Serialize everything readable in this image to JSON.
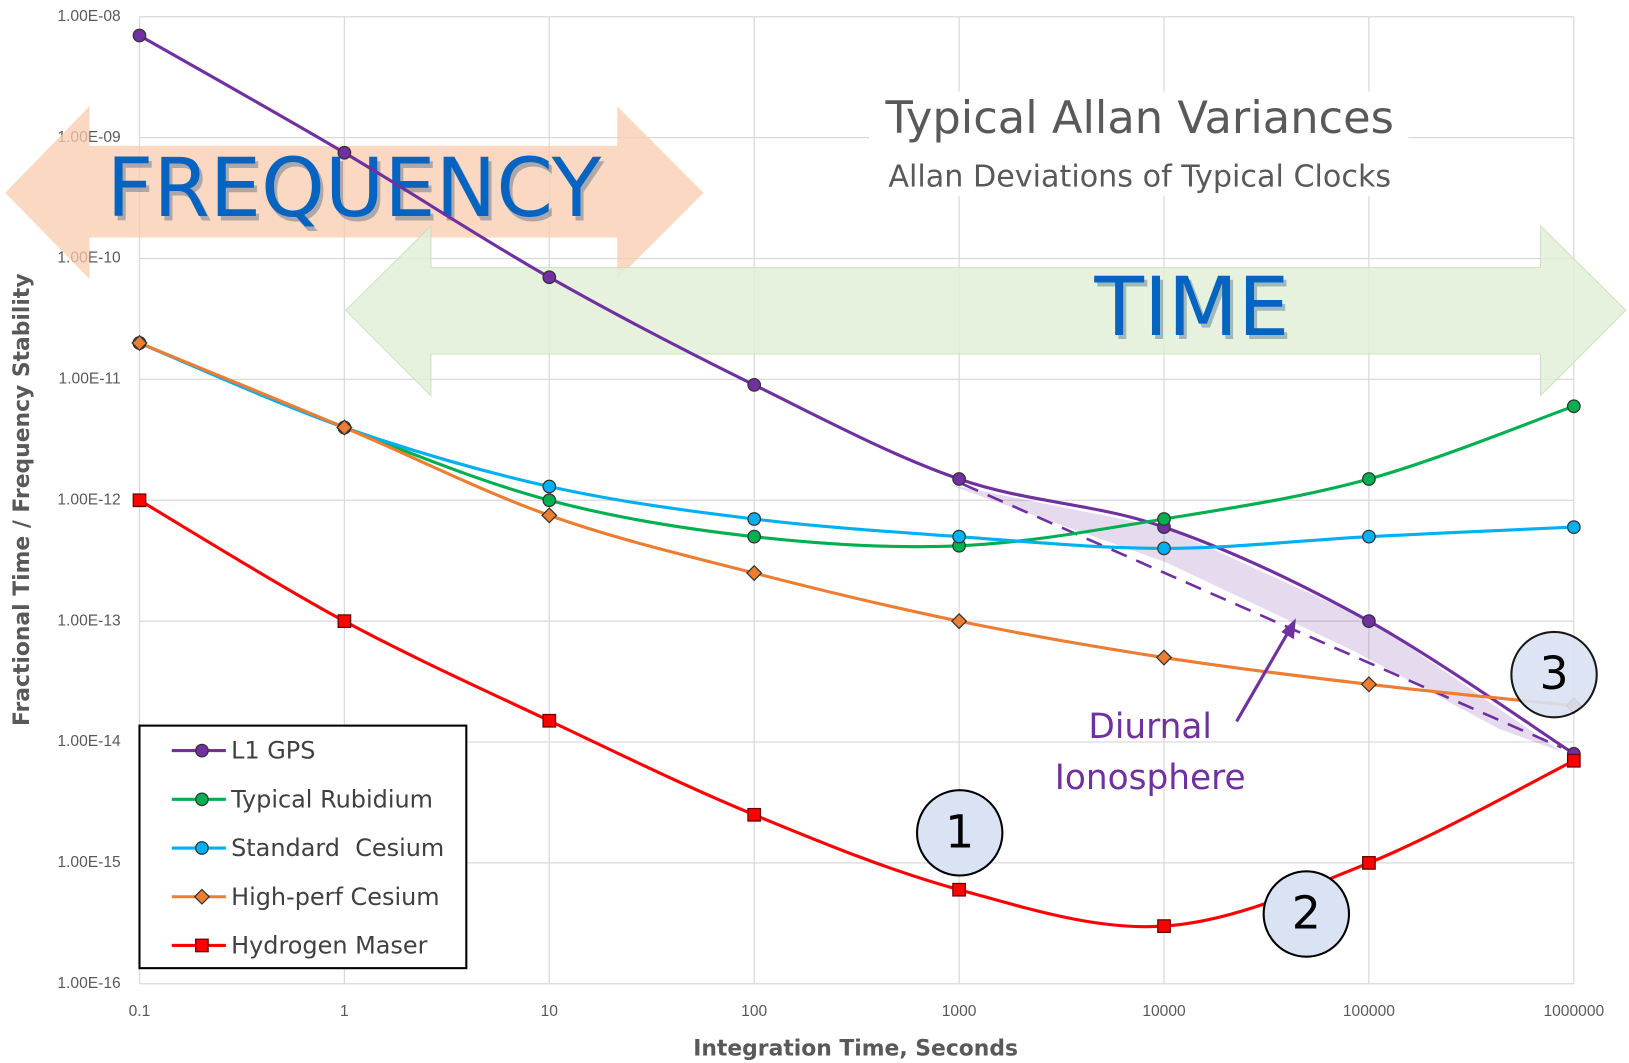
{
  "chart_data": {
    "type": "line",
    "title": "Typical Allan Variances",
    "subtitle": "Allan Deviations of Typical Clocks",
    "x_label": "Integration Time, Seconds",
    "y_label": "Fractional Time / Frequency Stability",
    "annotations": {
      "frequency": "FREQUENCY",
      "time": "TIME",
      "diurnal": "Diurnal",
      "ionosphere": "Ionosphere",
      "n1": "1",
      "n2": "2",
      "n3": "3"
    },
    "x": [
      0.1,
      1,
      10,
      100,
      1000,
      10000,
      100000,
      1000000
    ],
    "series": [
      {
        "name": "L1 GPS",
        "color": "#7030a0",
        "marker": "circle",
        "values": [
          7e-09,
          7.5e-10,
          7e-11,
          9e-12,
          1.5e-12,
          6e-13,
          1e-13,
          8e-15
        ]
      },
      {
        "name": "Typical Rubidium",
        "color": "#00b050",
        "marker": "circle",
        "values": [
          2e-11,
          4e-12,
          1e-12,
          5e-13,
          4.2e-13,
          7e-13,
          1.5e-12,
          6e-12
        ]
      },
      {
        "name": "Standard  Cesium",
        "color": "#00b0f0",
        "marker": "circle",
        "values": [
          2e-11,
          4e-12,
          1.3e-12,
          7e-13,
          5e-13,
          4e-13,
          5e-13,
          6e-13
        ]
      },
      {
        "name": "High-perf Cesium",
        "color": "#ed7d31",
        "marker": "diamond",
        "values": [
          2e-11,
          4e-12,
          7.5e-13,
          2.5e-13,
          1e-13,
          5e-14,
          3e-14,
          2e-14
        ]
      },
      {
        "name": "Hydrogen Maser",
        "color": "#ff0000",
        "marker": "square",
        "values": [
          1e-12,
          1e-13,
          1.5e-14,
          2.5e-15,
          6e-16,
          3e-16,
          1e-15,
          7e-15
        ]
      }
    ],
    "xlim": [
      0.1,
      1000000
    ],
    "xticks": [
      0.1,
      1,
      10,
      100,
      1000,
      10000,
      100000,
      1000000
    ],
    "ylim": [
      1e-16,
      1e-08
    ],
    "yticks": [
      {
        "value": 1e-08,
        "label": "1.00E-08"
      },
      {
        "value": 1e-09,
        "label": "1.00E-09"
      },
      {
        "value": 1e-10,
        "label": "1.00E-10"
      },
      {
        "value": 1e-11,
        "label": "1.00E-11"
      },
      {
        "value": 1e-12,
        "label": "1.00E-12"
      },
      {
        "value": 1e-13,
        "label": "1.00E-13"
      },
      {
        "value": 1e-14,
        "label": "1.00E-14"
      },
      {
        "value": 1e-15,
        "label": "1.00E-15"
      },
      {
        "value": 1e-16,
        "label": "1.00E-16"
      }
    ],
    "xscale": "log",
    "yscale": "log",
    "grid": true,
    "legend": "lower left"
  }
}
